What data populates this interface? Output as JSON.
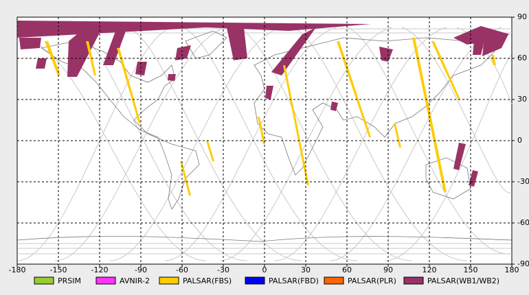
{
  "chart_data": {
    "type": "map",
    "xlim": [
      -180,
      180
    ],
    "xticks": [
      -180,
      -150,
      -120,
      -90,
      -60,
      -30,
      0,
      30,
      60,
      90,
      120,
      150,
      180
    ],
    "ylim": [
      -90,
      90
    ],
    "yticks": [
      -90,
      -60,
      -30,
      0,
      30,
      60,
      90
    ],
    "grid": true,
    "series": [
      {
        "name": "PRSIM",
        "color": "#99cc33"
      },
      {
        "name": "AVNIR-2",
        "color": "#ff33ff"
      },
      {
        "name": "PALSAR(FBS)",
        "color": "#ffcc00"
      },
      {
        "name": "PALSAR(FBD)",
        "color": "#0000ff"
      },
      {
        "name": "PALSAR(PLR)",
        "color": "#ff6600"
      },
      {
        "name": "PALSAR(WB1/WB2)",
        "color": "#993366"
      }
    ]
  }
}
